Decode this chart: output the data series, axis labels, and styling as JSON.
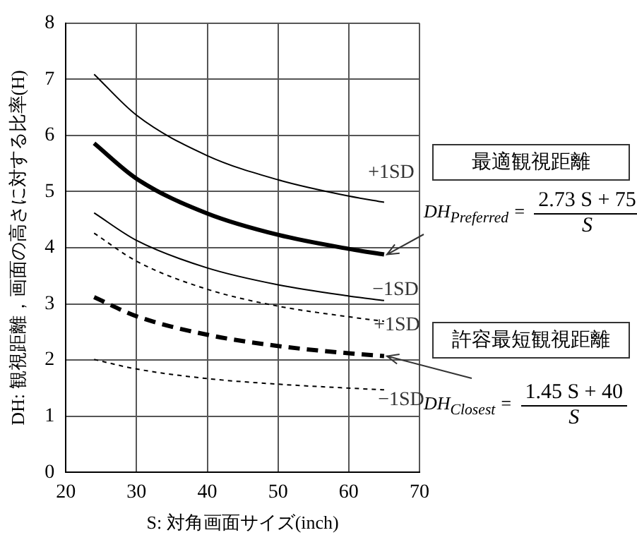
{
  "chart_data": {
    "type": "line",
    "xlabel": "S: 対角画面サイズ(inch)",
    "ylabel": "DH: 観視距離，画面の高さに対する比率(H)",
    "xlim": [
      20,
      70
    ],
    "xticks": [
      20,
      30,
      40,
      50,
      60,
      70
    ],
    "ylim": [
      0,
      8
    ],
    "yticks": [
      0,
      1,
      2,
      3,
      4,
      5,
      6,
      7,
      8
    ],
    "grid": true,
    "legend": false,
    "marker": "none",
    "series": [
      {
        "color": "#000000",
        "line_style": "solid",
        "x": [
          24,
          30,
          40,
          50,
          60,
          65
        ],
        "values": [
          7.09,
          6.36,
          5.64,
          5.21,
          4.92,
          4.81
        ]
      },
      {
        "color": "#000000",
        "line_style": "solid",
        "x": [
          24,
          30,
          40,
          50,
          60,
          65
        ],
        "values": [
          5.86,
          5.23,
          4.61,
          4.23,
          3.98,
          3.88
        ]
      },
      {
        "color": "#000000",
        "line_style": "solid",
        "x": [
          24,
          30,
          40,
          50,
          60,
          65
        ],
        "values": [
          4.62,
          4.13,
          3.64,
          3.34,
          3.14,
          3.06
        ]
      },
      {
        "color": "#000000",
        "line_style": "dotted",
        "x": [
          24,
          30,
          40,
          50,
          60,
          65
        ],
        "values": [
          4.26,
          3.76,
          3.26,
          2.96,
          2.77,
          2.69
        ]
      },
      {
        "color": "#000000",
        "line_style": "dashed",
        "x": [
          24,
          30,
          40,
          50,
          60,
          65
        ],
        "values": [
          3.12,
          2.78,
          2.45,
          2.25,
          2.12,
          2.07
        ]
      },
      {
        "color": "#000000",
        "line_style": "dotted",
        "x": [
          24,
          30,
          40,
          50,
          60,
          65
        ],
        "values": [
          2.01,
          1.84,
          1.67,
          1.57,
          1.5,
          1.47
        ]
      }
    ],
    "annotations": [
      "+1SD",
      "−1SD",
      "+1SD",
      "−1SD",
      "最適観視距離",
      {
        "text": "DH$_{Preferred}$ =",
        "x": 65,
        "y": 3.88
      },
      "2.73 S + 75",
      "S",
      "許容最短観視距離",
      {
        "text": "DH$_{Closest}$ =",
        "x": 65,
        "y": 2.07
      },
      "1.45 S + 40",
      "S"
    ]
  }
}
